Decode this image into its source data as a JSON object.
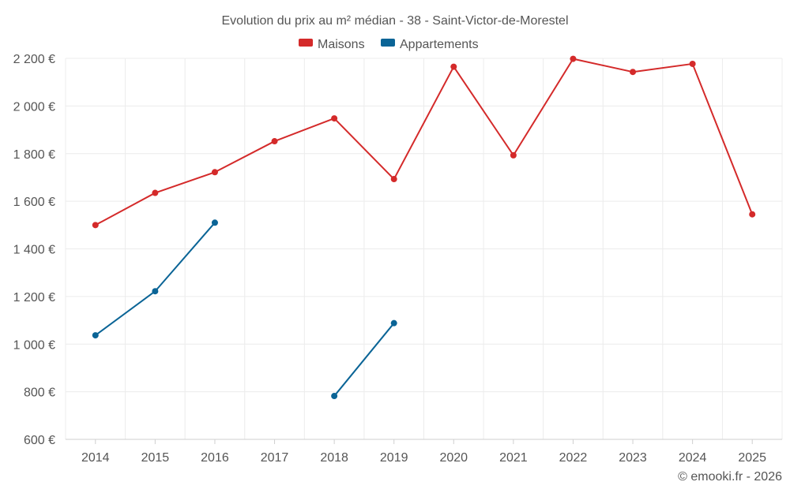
{
  "chart_data": {
    "type": "line",
    "title": "Evolution du prix au m² médian - 38 - Saint-Victor-de-Morestel",
    "categories": [
      "2014",
      "2015",
      "2016",
      "2017",
      "2018",
      "2019",
      "2020",
      "2021",
      "2022",
      "2023",
      "2024",
      "2025"
    ],
    "ylim": [
      600,
      2200
    ],
    "yticks": [
      600,
      800,
      1000,
      1200,
      1400,
      1600,
      1800,
      2000,
      2200
    ],
    "ytick_labels": [
      "600 €",
      "800 €",
      "1 000 €",
      "1 200 €",
      "1 400 €",
      "1 600 €",
      "1 800 €",
      "2 000 €",
      "2 200 €"
    ],
    "grid": true,
    "legend_position": "top-center",
    "series": [
      {
        "name": "Maisons",
        "color": "#d42a2a",
        "values": [
          1500,
          1635,
          1722,
          1852,
          1948,
          1693,
          2165,
          1793,
          2198,
          2143,
          2177,
          1545
        ]
      },
      {
        "name": "Appartements",
        "color": "#0a6496",
        "values": [
          1037,
          1222,
          1510,
          null,
          782,
          1088,
          null,
          null,
          null,
          null,
          null,
          null
        ]
      }
    ],
    "credit": "© emooki.fr - 2026"
  }
}
